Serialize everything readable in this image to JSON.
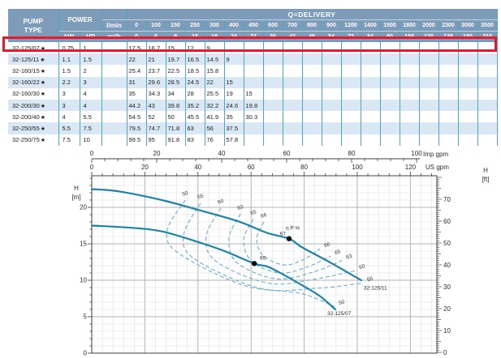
{
  "table": {
    "header": {
      "pump_type_line1": "PUMP",
      "pump_type_line2": "TYPE",
      "power": "POWER",
      "kw": "kW",
      "hp": "HP",
      "q_delivery": "Q=DELIVERY",
      "unit_top": "l/min",
      "unit_bottom": "m³/h",
      "flow_lmin": [
        "0",
        "100",
        "150",
        "250",
        "300",
        "400",
        "450",
        "600",
        "700",
        "800",
        "900",
        "1200",
        "1400",
        "1500",
        "1800",
        "2000",
        "2300",
        "3000",
        "3500"
      ],
      "flow_m3h": [
        "0",
        "6",
        "9",
        "15",
        "18",
        "24",
        "27",
        "36",
        "42",
        "48",
        "54",
        "72",
        "84",
        "90",
        "108",
        "120",
        "138",
        "180",
        "210"
      ]
    },
    "highlighted_row_index": 0,
    "rows": [
      {
        "type": "32-125/07",
        "star": "★",
        "kw": "0.75",
        "hp": "1",
        "values": [
          "17.5",
          "16.7",
          "15",
          "12",
          "9",
          "",
          "",
          "",
          "",
          "",
          "",
          "",
          "",
          "",
          "",
          "",
          "",
          "",
          ""
        ]
      },
      {
        "type": "32-125/11",
        "star": "★",
        "kw": "1.1",
        "hp": "1.5",
        "values": [
          "22",
          "21",
          "19.7",
          "16.5",
          "14.5",
          "9",
          "",
          "",
          "",
          "",
          "",
          "",
          "",
          "",
          "",
          "",
          "",
          "",
          ""
        ]
      },
      {
        "type": "32-160/15",
        "star": "★",
        "kw": "1.5",
        "hp": "2",
        "values": [
          "25.4",
          "23.7",
          "22.5",
          "18.5",
          "15.8",
          "",
          "",
          "",
          "",
          "",
          "",
          "",
          "",
          "",
          "",
          "",
          "",
          "",
          ""
        ]
      },
      {
        "type": "32-160/22",
        "star": "★",
        "kw": "2.2",
        "hp": "3",
        "values": [
          "31",
          "29.6",
          "28.5",
          "24.5",
          "22",
          "15",
          "",
          "",
          "",
          "",
          "",
          "",
          "",
          "",
          "",
          "",
          "",
          "",
          ""
        ]
      },
      {
        "type": "32-160/30",
        "star": "★",
        "kw": "3",
        "hp": "4",
        "values": [
          "35",
          "34.3",
          "34",
          "28",
          "25.5",
          "19",
          "15",
          "",
          "",
          "",
          "",
          "",
          "",
          "",
          "",
          "",
          "",
          "",
          ""
        ]
      },
      {
        "type": "32-200/30",
        "star": "★",
        "kw": "3",
        "hp": "4",
        "values": [
          "44.2",
          "43",
          "39.8",
          "35.2",
          "32.2",
          "24.6",
          "19.8",
          "",
          "",
          "",
          "",
          "",
          "",
          "",
          "",
          "",
          "",
          "",
          ""
        ]
      },
      {
        "type": "32-200/40",
        "star": "★",
        "kw": "4",
        "hp": "5.5",
        "values": [
          "54.5",
          "52",
          "50",
          "45.5",
          "41.9",
          "35",
          "30.3",
          "",
          "",
          "",
          "",
          "",
          "",
          "",
          "",
          "",
          "",
          "",
          ""
        ]
      },
      {
        "type": "32-250/55",
        "star": "★",
        "kw": "5.5",
        "hp": "7.5",
        "values": [
          "79.5",
          "74.7",
          "71.8",
          "63",
          "56",
          "37.5",
          "",
          "",
          "",
          "",
          "",
          "",
          "",
          "",
          "",
          "",
          "",
          "",
          ""
        ]
      },
      {
        "type": "32-250/75",
        "star": "★",
        "kw": "7.5",
        "hp": "10",
        "values": [
          "99.5",
          "95",
          "91.8",
          "83",
          "76",
          "57.8",
          "",
          "",
          "",
          "",
          "",
          "",
          "",
          "",
          "",
          "",
          "",
          "",
          ""
        ]
      }
    ]
  },
  "chart_data": {
    "type": "line",
    "x_axes": [
      {
        "label": "Imp gpm",
        "ticks": [
          0,
          20,
          40,
          60,
          80,
          100
        ]
      },
      {
        "label": "US gpm",
        "ticks": [
          0,
          20,
          40,
          60,
          80,
          100,
          120
        ]
      }
    ],
    "y_axes": [
      {
        "label_line1": "H",
        "label_line2": "[m]",
        "ticks": [
          0,
          5,
          10,
          15,
          20
        ],
        "range": [
          0,
          24.3
        ]
      },
      {
        "label_line1": "H",
        "label_line2": "[ft]",
        "ticks": [
          0,
          10,
          20,
          30,
          40,
          50,
          60,
          70
        ]
      }
    ],
    "grid": true,
    "series": [
      {
        "name": "32-125/11",
        "x_usgpm": [
          0,
          10,
          26.4,
          39.6,
          55,
          66,
          74.3,
          79.3,
          90,
          101.5
        ],
        "h_m": [
          22.5,
          22.2,
          21,
          19.7,
          18.1,
          16.5,
          15.7,
          14.5,
          12.4,
          10
        ],
        "label_at": {
          "x_usgpm": 102.4,
          "h_m": 8.7
        }
      },
      {
        "name": "32-125/07",
        "x_usgpm": [
          0,
          15,
          26.4,
          39.6,
          50,
          61.2,
          66,
          70,
          79.3,
          86,
          91.7
        ],
        "h_m": [
          17.5,
          17.2,
          16.7,
          15.3,
          14,
          12.3,
          11.9,
          11.2,
          9.3,
          7.8,
          6
        ],
        "label_at": {
          "x_usgpm": 88.7,
          "h_m": 5.2
        }
      }
    ],
    "efficiency_unit_label": "η P %",
    "efficiency_contours": [
      {
        "label": "50",
        "x": [
          35.2,
          28.4,
          32.7,
          57.2,
          78.6,
          91.4
        ],
        "h": [
          21,
          16.8,
          13.7,
          9.3,
          8.2,
          6.4
        ]
      },
      {
        "label": "55",
        "x": [
          41,
          34.6,
          38.8,
          63.3,
          84.7,
          102.1
        ],
        "h": [
          20.6,
          16.2,
          12.9,
          8.9,
          8.9,
          9.6
        ]
      },
      {
        "label": "60",
        "x": [
          48.6,
          43.1,
          46.8,
          66.4,
          83.2,
          99.1
        ],
        "h": [
          19.9,
          16,
          12.6,
          9.6,
          10.1,
          11.3
        ]
      },
      {
        "label": "63",
        "x": [
          56,
          51.7,
          54.7,
          69.4,
          83.2,
          94.2
        ],
        "h": [
          19.1,
          15.8,
          12.4,
          10.2,
          11.1,
          12.7
        ]
      },
      {
        "label": "65",
        "x": [
          60.9,
          57.2,
          60.2,
          70.9,
          81.7,
          89.9
        ],
        "h": [
          18.4,
          15.6,
          12.6,
          11,
          11.9,
          13.3
        ]
      },
      {
        "label": "66",
        "x": [
          64.8,
          62.1,
          64.5,
          72.5,
          80.1,
          85.9
        ],
        "h": [
          18,
          15.7,
          13.4,
          12.1,
          12.9,
          14.3
        ]
      }
    ],
    "bep_markers": [
      {
        "label": "67",
        "x_usgpm": 74.3,
        "h_m": 15.7
      },
      {
        "label": "65",
        "x_usgpm": 61.2,
        "h_m": 12.3
      }
    ]
  },
  "colors": {
    "header_bg": "#7d9cba",
    "row_alt": "#d9e8f4",
    "grid_teal": "#49a9c7",
    "highlight_red": "#e8192c",
    "curve": "#1d83a8",
    "contour": "#74b5cd",
    "grid_major": "#b3b3b3",
    "grid_minor": "#dfdfdf",
    "axis": "#3c3c3c"
  }
}
